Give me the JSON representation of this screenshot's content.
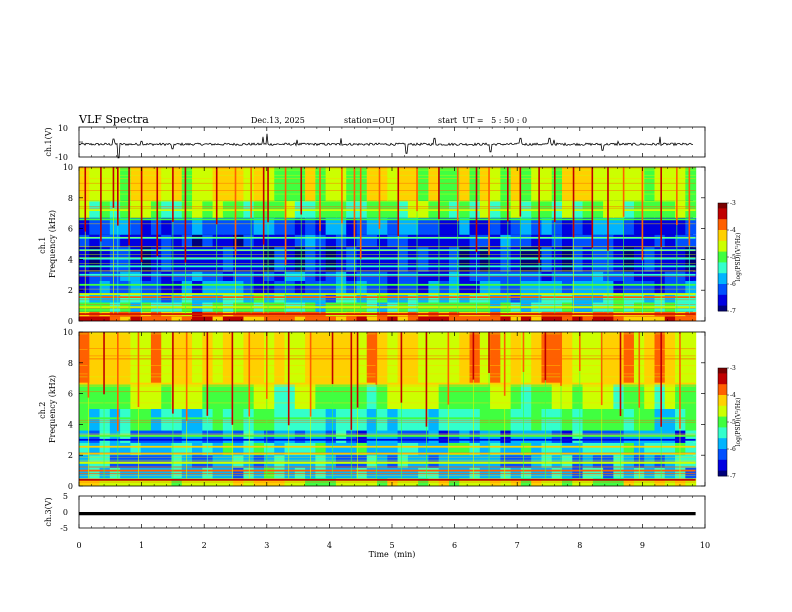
{
  "header": {
    "title": "VLF Spectra",
    "date": "Dec.13, 2025",
    "station": "station=OUJ",
    "start": "start  UT =   5 : 50 : 0"
  },
  "colors": {
    "colormap": [
      "#00007a",
      "#0000e0",
      "#0050ff",
      "#00b4ff",
      "#33ffcc",
      "#40ff40",
      "#ccff00",
      "#ffd000",
      "#ff6000",
      "#c00000",
      "#7a0000"
    ]
  },
  "chart_data": [
    {
      "type": "line",
      "name": "ch1-waveform",
      "ylabel": "ch.1(V)",
      "yticklabels": [
        "10",
        "-10"
      ],
      "ylim": [
        -10,
        10
      ],
      "xlim": [
        0,
        10
      ],
      "baseline": -1.5,
      "spikes": [
        {
          "x": 0.55,
          "amp": 3.5
        },
        {
          "x": 0.63,
          "amp": -9
        },
        {
          "x": 1.0,
          "amp": 2
        },
        {
          "x": 1.5,
          "amp": -3
        },
        {
          "x": 2.95,
          "amp": 5
        },
        {
          "x": 3.02,
          "amp": 7
        },
        {
          "x": 3.5,
          "amp": 3
        },
        {
          "x": 4.2,
          "amp": 4
        },
        {
          "x": 5.25,
          "amp": -6
        },
        {
          "x": 5.7,
          "amp": 4
        },
        {
          "x": 6.6,
          "amp": -5
        },
        {
          "x": 7.08,
          "amp": 4
        },
        {
          "x": 7.55,
          "amp": 4
        },
        {
          "x": 7.62,
          "amp": 3
        },
        {
          "x": 8.4,
          "amp": -4
        },
        {
          "x": 8.65,
          "amp": 2
        },
        {
          "x": 9.32,
          "amp": 5
        }
      ]
    },
    {
      "type": "heatmap",
      "name": "ch1-spectrogram",
      "ylabel": "ch.1 Frequency (kHz)",
      "yticks": [
        0,
        2,
        4,
        6,
        8,
        10
      ],
      "ylim": [
        0,
        10
      ],
      "xlim": [
        0,
        9.85
      ],
      "colorbar_label": "log(PSD)(V²/Hz)",
      "colorbar_ticks": [
        -3,
        -4,
        -5,
        -6,
        -7
      ],
      "clim": [
        -7,
        -3
      ],
      "bands": [
        {
          "f": [
            0,
            0.3
          ],
          "level": -3.8
        },
        {
          "f": [
            0.3,
            0.6
          ],
          "level": -4.0
        },
        {
          "f": [
            0.6,
            1.2
          ],
          "level": -5.2
        },
        {
          "f": [
            1.2,
            1.8
          ],
          "level": -5.6
        },
        {
          "f": [
            1.8,
            2.6
          ],
          "level": -6.1
        },
        {
          "f": [
            2.6,
            3.2
          ],
          "level": -6.3
        },
        {
          "f": [
            3.2,
            4.8
          ],
          "level": -6.6
        },
        {
          "f": [
            4.8,
            5.6
          ],
          "level": -6.4
        },
        {
          "f": [
            5.6,
            6.7
          ],
          "level": -6.2
        },
        {
          "f": [
            6.7,
            7.8
          ],
          "level": -5.0
        },
        {
          "f": [
            7.8,
            10
          ],
          "level": -4.5
        }
      ],
      "lines": [
        {
          "f": 0.45,
          "level": -3.4
        },
        {
          "f": 0.9,
          "level": -4.8
        },
        {
          "f": 1.55,
          "level": -4.0
        },
        {
          "f": 1.75,
          "level": -4.8
        },
        {
          "f": 2.35,
          "level": -5.1
        },
        {
          "f": 3.0,
          "level": -5.3
        },
        {
          "f": 3.55,
          "level": -5.4
        },
        {
          "f": 4.05,
          "level": -5.3
        },
        {
          "f": 4.6,
          "level": -5.6
        },
        {
          "f": 5.4,
          "level": -5.5
        },
        {
          "f": 6.6,
          "level": -5.2
        },
        {
          "f": 7.2,
          "level": -4.6
        }
      ],
      "events": [
        0.1,
        0.35,
        0.55,
        0.62,
        0.8,
        1.0,
        1.25,
        1.5,
        1.7,
        2.2,
        2.5,
        2.75,
        2.95,
        3.02,
        3.3,
        3.55,
        3.85,
        4.2,
        4.4,
        4.5,
        4.8,
        5.1,
        5.4,
        5.75,
        6.05,
        6.35,
        6.55,
        6.85,
        7.05,
        7.35,
        7.6,
        7.9,
        8.2,
        8.45,
        8.7,
        9.0,
        9.3,
        9.55,
        9.75
      ]
    },
    {
      "type": "heatmap",
      "name": "ch2-spectrogram",
      "ylabel": "ch.2 Frequency (kHz)",
      "yticks": [
        0,
        2,
        4,
        6,
        8,
        10
      ],
      "ylim": [
        0,
        10
      ],
      "xlim": [
        0,
        9.85
      ],
      "colorbar_label": "log(PSD)(V²/Hz)",
      "colorbar_ticks": [
        -3,
        -4,
        -5,
        -6,
        -7
      ],
      "clim": [
        -7,
        -3
      ],
      "bands": [
        {
          "f": [
            0,
            0.5
          ],
          "level": -4.6
        },
        {
          "f": [
            0.5,
            1.2
          ],
          "level": -5.6
        },
        {
          "f": [
            1.2,
            2.0
          ],
          "level": -5.9
        },
        {
          "f": [
            2.0,
            2.8
          ],
          "level": -5.5
        },
        {
          "f": [
            2.8,
            3.6
          ],
          "level": -6.0
        },
        {
          "f": [
            3.6,
            5.0
          ],
          "level": -5.3
        },
        {
          "f": [
            5.0,
            6.6
          ],
          "level": -4.9
        },
        {
          "f": [
            6.6,
            10
          ],
          "level": -4.3
        }
      ],
      "lines": [
        {
          "f": 0.4,
          "level": -3.6
        },
        {
          "f": 1.0,
          "level": -3.8
        },
        {
          "f": 1.5,
          "level": -4.6
        },
        {
          "f": 2.1,
          "level": -4.2
        },
        {
          "f": 2.55,
          "level": -4.3
        },
        {
          "f": 3.0,
          "level": -6.6
        },
        {
          "f": 3.25,
          "level": -5.0
        },
        {
          "f": 4.4,
          "level": -5.2
        },
        {
          "f": 6.65,
          "level": -4.2
        }
      ],
      "events": [
        0.15,
        0.4,
        0.62,
        0.95,
        1.5,
        1.72,
        2.05,
        2.45,
        2.72,
        3.0,
        3.35,
        3.7,
        4.05,
        4.35,
        4.45,
        4.75,
        5.15,
        5.55,
        5.9,
        6.3,
        6.55,
        6.8,
        7.1,
        7.45,
        7.7,
        8.0,
        8.35,
        8.65,
        8.95,
        9.3,
        9.6
      ]
    },
    {
      "type": "line",
      "name": "ch3-waveform",
      "ylabel": "ch.3(V)",
      "yticklabels": [
        "5",
        "0",
        "-5"
      ],
      "ylim": [
        -5,
        5
      ],
      "xlim": [
        0,
        9.85
      ],
      "value": -0.5
    }
  ],
  "xaxis": {
    "label": "Time  (min)",
    "ticks": [
      "0",
      "1",
      "2",
      "3",
      "4",
      "5",
      "6",
      "7",
      "8",
      "9",
      "10"
    ],
    "xlim": [
      0,
      10
    ]
  }
}
